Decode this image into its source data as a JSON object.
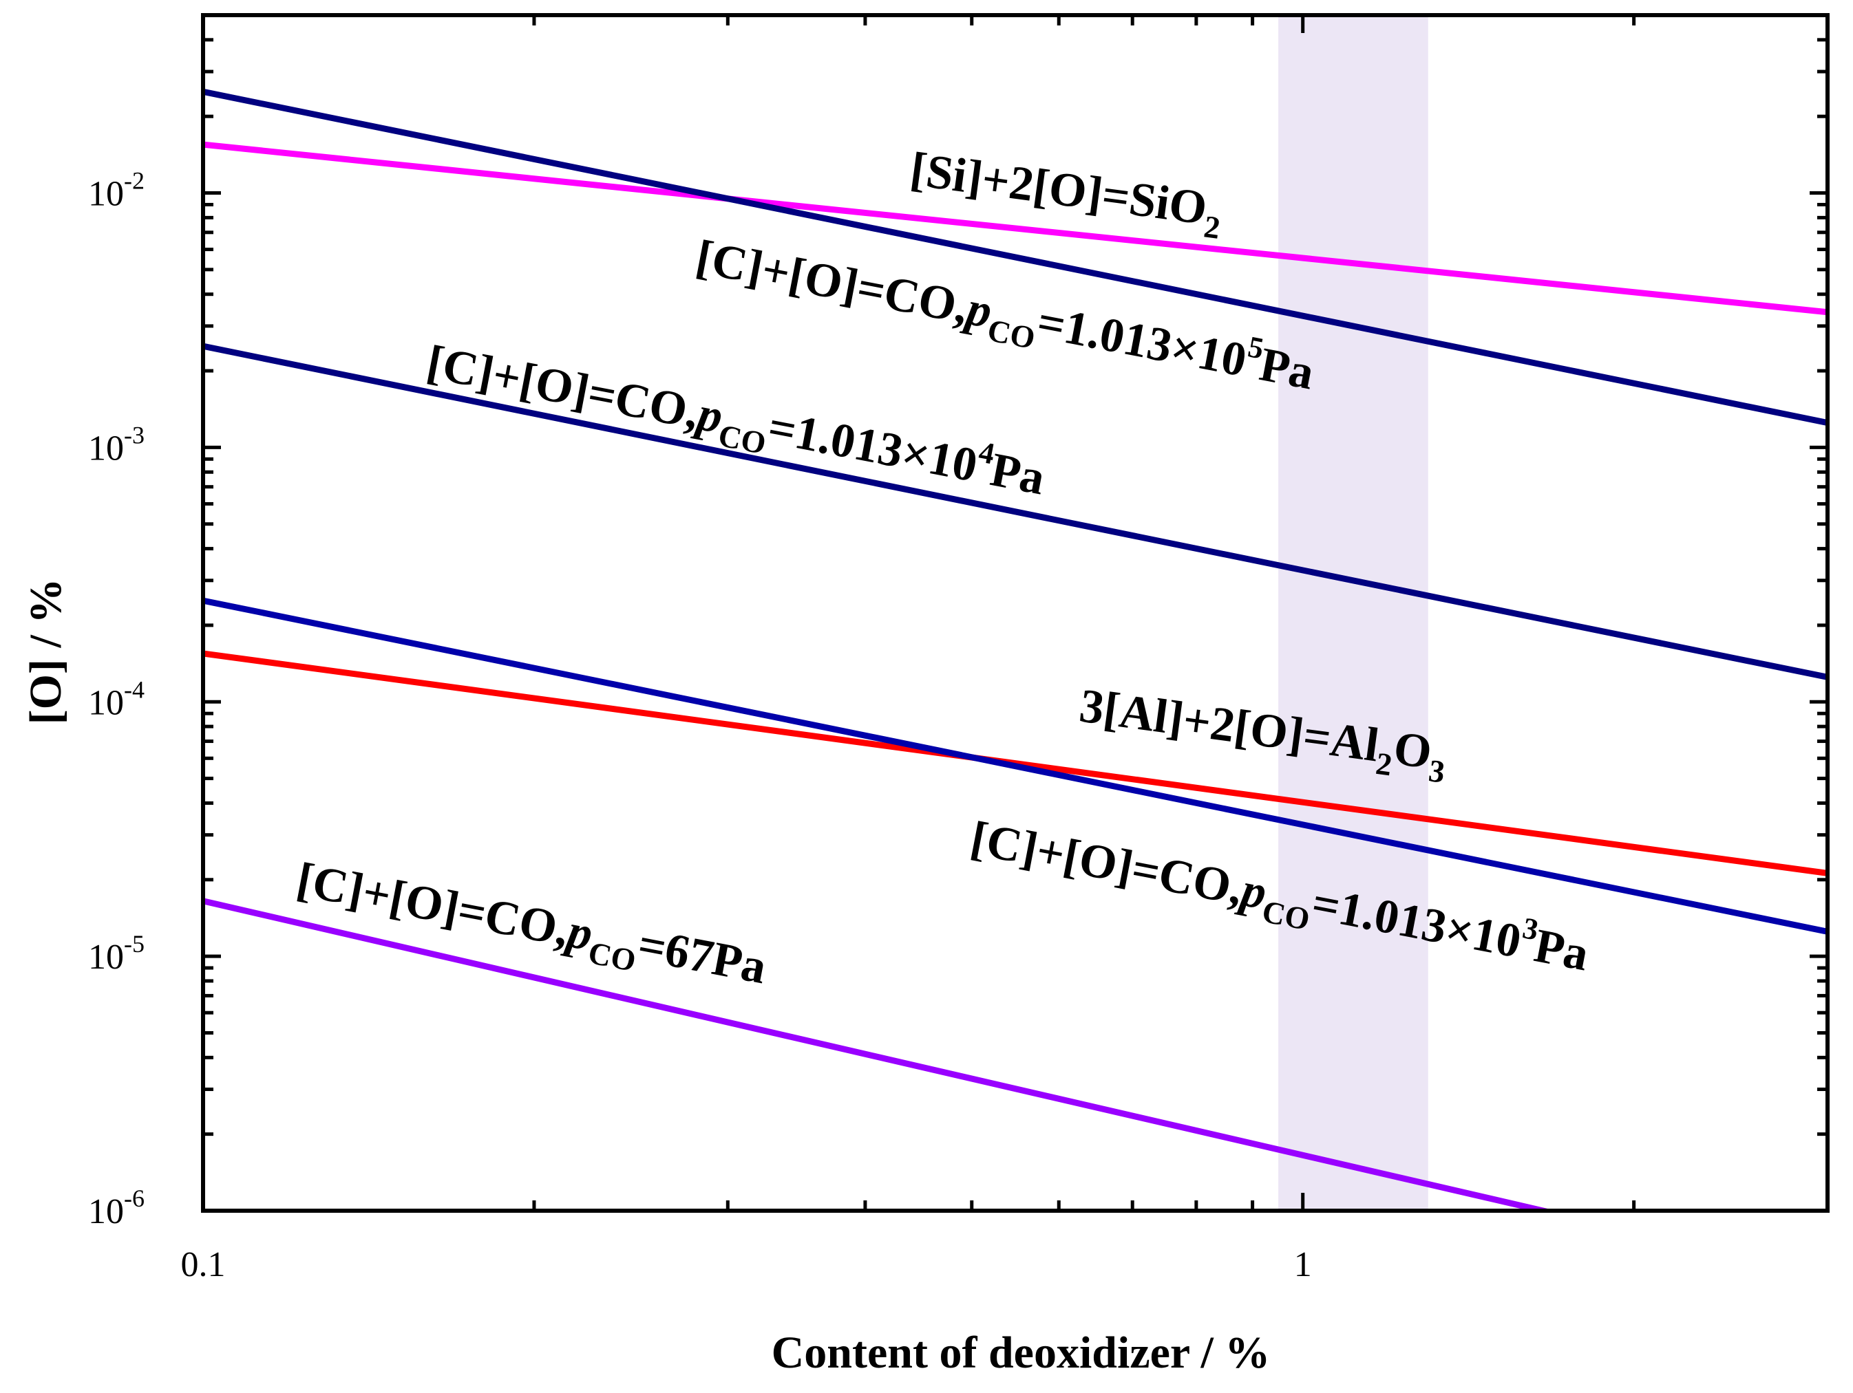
{
  "chart_data": {
    "type": "line",
    "xlabel": "Content of deoxidizer / %",
    "ylabel": "[O] / %",
    "x_scale": "log",
    "y_scale": "log",
    "xlim": [
      0.1,
      3.0
    ],
    "ylim": [
      1e-06,
      0.05
    ],
    "grid": false,
    "x_ticks": [
      {
        "value": 0.1,
        "label": "0.1"
      },
      {
        "value": 1,
        "label": "1"
      }
    ],
    "y_ticks": [
      {
        "value": 1e-06,
        "base": "10",
        "exp": "-6"
      },
      {
        "value": 1e-05,
        "base": "10",
        "exp": "-5"
      },
      {
        "value": 0.0001,
        "base": "10",
        "exp": "-4"
      },
      {
        "value": 0.001,
        "base": "10",
        "exp": "-3"
      },
      {
        "value": 0.01,
        "base": "10",
        "exp": "-2"
      }
    ],
    "shaded_region": {
      "x": [
        0.95,
        1.3
      ],
      "color": "#ece6f5"
    },
    "series": [
      {
        "color": "#ff00ff",
        "label_parts": [
          {
            "t": "[Si]+2[O]=SiO"
          },
          {
            "t": "2",
            "sub": true
          }
        ],
        "x": [
          0.1,
          3.0
        ],
        "y": [
          0.0155,
          0.0034
        ]
      },
      {
        "color": "#000080",
        "label_parts": [
          {
            "t": "[C]+[O]=CO,"
          },
          {
            "t": "p",
            "it": true
          },
          {
            "t": "CO",
            "sub": true
          },
          {
            "t": "=1.013×10"
          },
          {
            "t": "5",
            "sup": true
          },
          {
            "t": "Pa"
          }
        ],
        "x": [
          0.1,
          3.0
        ],
        "y": [
          0.025,
          0.00125
        ]
      },
      {
        "color": "#000080",
        "label_parts": [
          {
            "t": "[C]+[O]=CO,"
          },
          {
            "t": "p",
            "it": true
          },
          {
            "t": "CO",
            "sub": true
          },
          {
            "t": "=1.013×10"
          },
          {
            "t": "4",
            "sup": true
          },
          {
            "t": "Pa"
          }
        ],
        "x": [
          0.1,
          3.0
        ],
        "y": [
          0.0025,
          0.000125
        ]
      },
      {
        "color": "#ff0000",
        "label_parts": [
          {
            "t": "3[Al]+2[O]=Al"
          },
          {
            "t": "2",
            "sub": true
          },
          {
            "t": "O"
          },
          {
            "t": "3",
            "sub": true
          }
        ],
        "x": [
          0.1,
          3.0
        ],
        "y": [
          0.000155,
          2.12e-05
        ]
      },
      {
        "color": "#0000aa",
        "label_parts": [
          {
            "t": "[C]+[O]=CO,"
          },
          {
            "t": "p",
            "it": true
          },
          {
            "t": "CO",
            "sub": true
          },
          {
            "t": "=1.013×10"
          },
          {
            "t": "3",
            "sup": true
          },
          {
            "t": "Pa"
          }
        ],
        "x": [
          0.1,
          3.0
        ],
        "y": [
          0.00025,
          1.25e-05
        ]
      },
      {
        "color": "#9900ff",
        "label_parts": [
          {
            "t": "[C]+[O]=CO,"
          },
          {
            "t": "p",
            "it": true
          },
          {
            "t": "CO",
            "sub": true
          },
          {
            "t": "=67Pa"
          }
        ],
        "x": [
          0.1,
          1.67
        ],
        "y": [
          1.65e-05,
          9.9e-07
        ]
      }
    ]
  }
}
